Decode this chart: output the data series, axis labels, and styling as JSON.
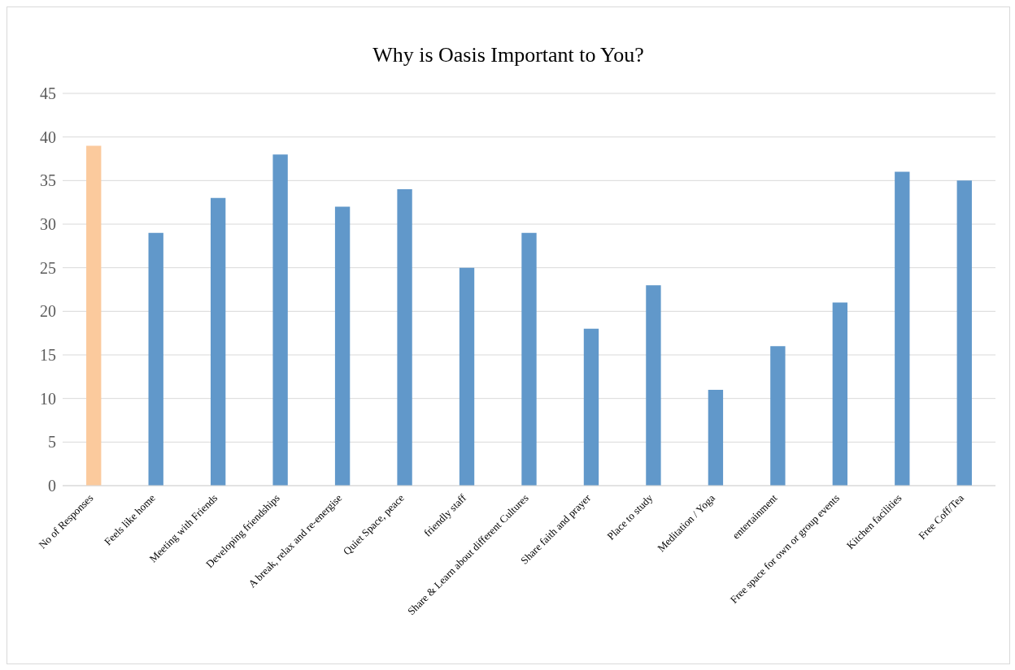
{
  "chart_data": {
    "type": "bar",
    "title": "Why is Oasis Important to You?",
    "categories": [
      "No of Responses",
      "Feels like home",
      "Meeting with Friends",
      "Developing friendships",
      "A break, relax and re-energise",
      "Quiet Space, peace",
      "friendly staff",
      "Share & Learn about different Cultures",
      "Share faith and prayer",
      "Place to study",
      "Meditation / Yoga",
      "entertainment",
      "Free space for own or group events",
      "Kitchen facilities",
      "Free Coff/Tea"
    ],
    "values": [
      39,
      29,
      33,
      38,
      32,
      34,
      25,
      29,
      18,
      23,
      11,
      16,
      21,
      36,
      35
    ],
    "colors": [
      "#fbca9d",
      "#6198ca",
      "#6198ca",
      "#6198ca",
      "#6198ca",
      "#6198ca",
      "#6198ca",
      "#6198ca",
      "#6198ca",
      "#6198ca",
      "#6198ca",
      "#6198ca",
      "#6198ca",
      "#6198ca",
      "#6198ca"
    ],
    "ylim": [
      0,
      45
    ],
    "yticks": [
      0,
      5,
      10,
      15,
      20,
      25,
      30,
      35,
      40,
      45
    ],
    "grid": "y",
    "legend": false
  }
}
